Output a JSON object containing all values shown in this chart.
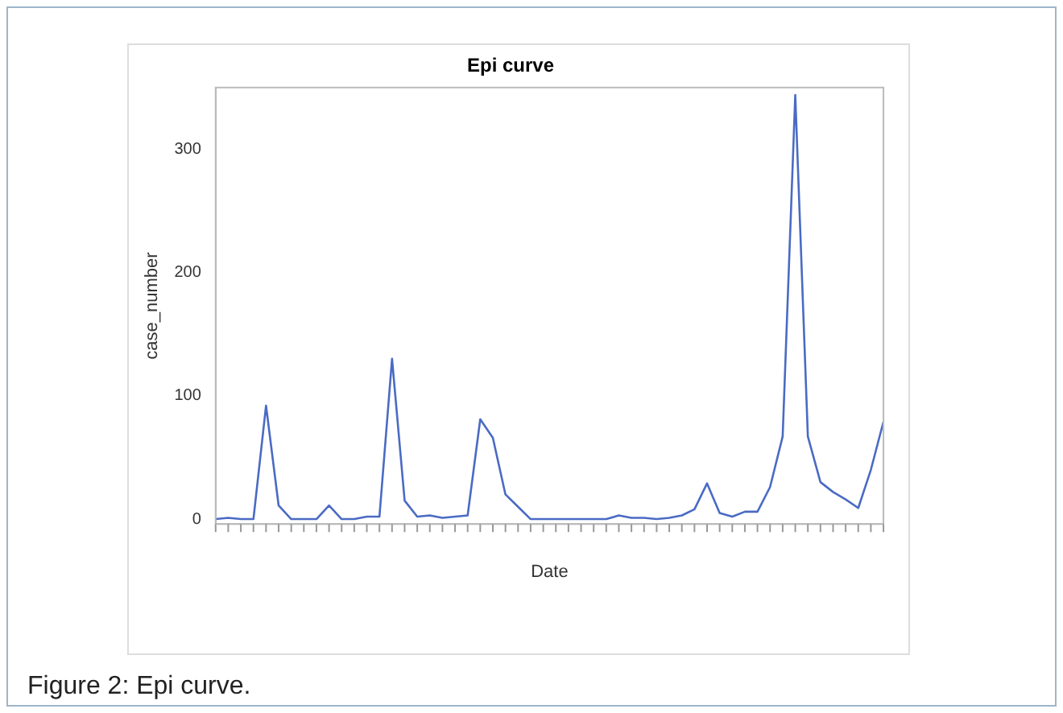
{
  "chart_data": {
    "type": "line",
    "title": "Epi curve",
    "xlabel": "Date",
    "ylabel": "case_number",
    "categories": [
      null,
      null,
      null,
      null,
      null,
      null,
      null,
      null,
      null,
      null,
      null,
      null,
      null,
      null,
      null,
      null,
      null,
      null,
      null,
      null,
      null,
      null,
      null,
      null,
      null,
      null,
      null,
      null,
      null,
      null,
      null,
      null,
      null,
      null,
      null,
      null,
      null,
      null,
      null,
      null,
      null,
      null,
      null,
      null,
      null,
      null,
      null,
      null,
      null,
      null,
      null,
      null,
      null,
      null
    ],
    "series": [
      {
        "color": "#4a6bc4",
        "values": [
          0,
          1,
          0,
          0,
          92,
          11,
          0,
          0,
          0,
          11,
          0,
          0,
          2,
          2,
          130,
          15,
          2,
          3,
          1,
          2,
          3,
          81,
          66,
          20,
          10,
          0,
          0,
          0,
          0,
          0,
          0,
          0,
          3,
          1,
          1,
          0,
          1,
          3,
          8,
          29,
          5,
          2,
          6,
          6,
          26,
          67,
          344,
          67,
          30,
          22,
          16,
          9,
          40,
          79
        ]
      }
    ],
    "ylim": [
      -4,
      350
    ],
    "yticks": [
      0,
      100,
      200,
      300
    ],
    "grid": false,
    "legend": false,
    "marker": "none",
    "line_style": "solid",
    "annotations": [
      "Figure 2: Epi curve."
    ]
  }
}
